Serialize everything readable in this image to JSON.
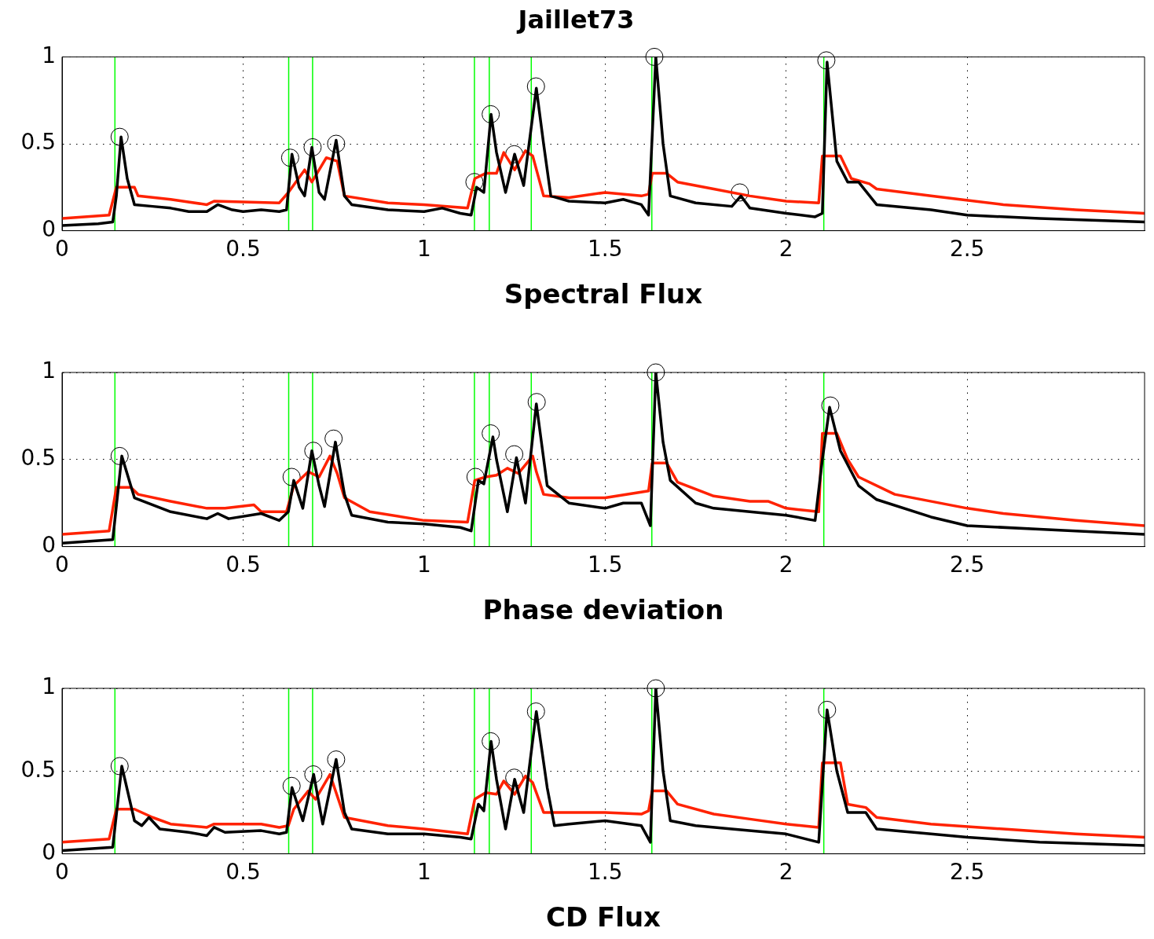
{
  "chart_data": [
    {
      "type": "line",
      "title": "Jaillet73",
      "xlabel": "Spectral Flux",
      "xlim": [
        0,
        2.99
      ],
      "xticks": [
        0,
        0.5,
        1,
        1.5,
        2,
        2.5
      ],
      "ylim": [
        0,
        1
      ],
      "yticks": [
        0,
        0.5,
        1
      ],
      "grid": true,
      "legend": false,
      "ref_lines": [
        {
          "axis": "x",
          "value": 0.146,
          "color": "#00ff00"
        },
        {
          "axis": "x",
          "value": 0.626,
          "color": "#00ff00"
        },
        {
          "axis": "x",
          "value": 0.692,
          "color": "#00ff00"
        },
        {
          "axis": "x",
          "value": 1.139,
          "color": "#00ff00"
        },
        {
          "axis": "x",
          "value": 1.18,
          "color": "#00ff00"
        },
        {
          "axis": "x",
          "value": 1.296,
          "color": "#00ff00"
        },
        {
          "axis": "x",
          "value": 1.629,
          "color": "#00ff00"
        },
        {
          "axis": "x",
          "value": 2.104,
          "color": "#00ff00"
        }
      ],
      "series": [
        {
          "type": "line",
          "color": "#000000",
          "x": [
            0,
            0.1,
            0.14,
            0.15,
            0.163,
            0.18,
            0.2,
            0.25,
            0.3,
            0.35,
            0.4,
            0.43,
            0.47,
            0.5,
            0.55,
            0.6,
            0.62,
            0.635,
            0.655,
            0.67,
            0.69,
            0.71,
            0.725,
            0.757,
            0.78,
            0.8,
            0.9,
            1,
            1.05,
            1.1,
            1.13,
            1.145,
            1.165,
            1.185,
            1.2,
            1.225,
            1.25,
            1.275,
            1.31,
            1.33,
            1.35,
            1.4,
            1.5,
            1.55,
            1.6,
            1.62,
            1.64,
            1.66,
            1.68,
            1.75,
            1.85,
            1.875,
            1.9,
            2,
            2.08,
            2.1,
            2.113,
            2.14,
            2.17,
            2.2,
            2.25,
            2.4,
            2.5,
            2.7,
            2.99
          ],
          "values": [
            0.03,
            0.04,
            0.05,
            0.2,
            0.54,
            0.3,
            0.15,
            0.14,
            0.13,
            0.11,
            0.11,
            0.15,
            0.12,
            0.11,
            0.12,
            0.11,
            0.12,
            0.44,
            0.25,
            0.2,
            0.48,
            0.22,
            0.18,
            0.52,
            0.2,
            0.15,
            0.12,
            0.11,
            0.13,
            0.1,
            0.09,
            0.25,
            0.22,
            0.67,
            0.45,
            0.22,
            0.44,
            0.26,
            0.82,
            0.5,
            0.2,
            0.17,
            0.16,
            0.18,
            0.15,
            0.09,
            1,
            0.5,
            0.2,
            0.16,
            0.14,
            0.2,
            0.13,
            0.1,
            0.08,
            0.1,
            0.97,
            0.4,
            0.28,
            0.28,
            0.15,
            0.12,
            0.09,
            0.07,
            0.05
          ]
        },
        {
          "type": "line",
          "color": "#ff2200",
          "x": [
            0,
            0.13,
            0.15,
            0.2,
            0.21,
            0.3,
            0.4,
            0.42,
            0.6,
            0.625,
            0.67,
            0.69,
            0.73,
            0.76,
            0.78,
            0.9,
            1,
            1.12,
            1.14,
            1.17,
            1.2,
            1.22,
            1.25,
            1.28,
            1.3,
            1.33,
            1.4,
            1.5,
            1.6,
            1.62,
            1.63,
            1.67,
            1.7,
            1.8,
            1.9,
            2,
            2.09,
            2.1,
            2.15,
            2.18,
            2.23,
            2.25,
            2.4,
            2.6,
            2.8,
            2.99
          ],
          "values": [
            0.07,
            0.09,
            0.25,
            0.25,
            0.2,
            0.18,
            0.15,
            0.17,
            0.16,
            0.22,
            0.35,
            0.28,
            0.42,
            0.4,
            0.2,
            0.16,
            0.15,
            0.13,
            0.3,
            0.33,
            0.33,
            0.45,
            0.35,
            0.46,
            0.43,
            0.2,
            0.19,
            0.22,
            0.2,
            0.21,
            0.33,
            0.33,
            0.28,
            0.24,
            0.2,
            0.17,
            0.16,
            0.43,
            0.43,
            0.3,
            0.27,
            0.24,
            0.2,
            0.15,
            0.12,
            0.1
          ]
        },
        {
          "type": "scatter",
          "color": "#000000",
          "marker": "circle",
          "x": [
            0.159,
            0.63,
            0.692,
            0.757,
            1.139,
            1.184,
            1.249,
            1.309,
            1.636,
            1.872,
            2.111
          ],
          "values": [
            0.54,
            0.42,
            0.48,
            0.5,
            0.28,
            0.67,
            0.44,
            0.83,
            1,
            0.22,
            0.98
          ]
        }
      ]
    },
    {
      "type": "line",
      "xlabel": "Phase deviation",
      "xlim": [
        0,
        2.99
      ],
      "xticks": [
        0,
        0.5,
        1,
        1.5,
        2,
        2.5
      ],
      "ylim": [
        0,
        1
      ],
      "yticks": [
        0,
        0.5,
        1
      ],
      "grid": true,
      "legend": false,
      "ref_lines": [
        {
          "axis": "x",
          "value": 0.146,
          "color": "#00ff00"
        },
        {
          "axis": "x",
          "value": 0.626,
          "color": "#00ff00"
        },
        {
          "axis": "x",
          "value": 0.692,
          "color": "#00ff00"
        },
        {
          "axis": "x",
          "value": 1.139,
          "color": "#00ff00"
        },
        {
          "axis": "x",
          "value": 1.18,
          "color": "#00ff00"
        },
        {
          "axis": "x",
          "value": 1.296,
          "color": "#00ff00"
        },
        {
          "axis": "x",
          "value": 1.629,
          "color": "#00ff00"
        },
        {
          "axis": "x",
          "value": 2.104,
          "color": "#00ff00"
        }
      ],
      "series": [
        {
          "type": "line",
          "color": "#000000",
          "x": [
            0,
            0.14,
            0.165,
            0.2,
            0.3,
            0.4,
            0.43,
            0.46,
            0.55,
            0.6,
            0.625,
            0.64,
            0.665,
            0.69,
            0.71,
            0.725,
            0.755,
            0.78,
            0.8,
            0.9,
            1,
            1.1,
            1.13,
            1.15,
            1.165,
            1.19,
            1.2,
            1.23,
            1.255,
            1.28,
            1.31,
            1.34,
            1.4,
            1.5,
            1.55,
            1.6,
            1.625,
            1.64,
            1.66,
            1.68,
            1.75,
            1.8,
            1.9,
            2,
            2.08,
            2.1,
            2.12,
            2.15,
            2.2,
            2.25,
            2.4,
            2.5,
            2.7,
            2.99
          ],
          "values": [
            0.02,
            0.04,
            0.52,
            0.28,
            0.2,
            0.16,
            0.19,
            0.16,
            0.19,
            0.15,
            0.2,
            0.38,
            0.22,
            0.55,
            0.35,
            0.23,
            0.6,
            0.3,
            0.18,
            0.14,
            0.13,
            0.11,
            0.09,
            0.38,
            0.36,
            0.63,
            0.5,
            0.2,
            0.51,
            0.25,
            0.82,
            0.35,
            0.25,
            0.22,
            0.25,
            0.25,
            0.12,
            1,
            0.6,
            0.38,
            0.25,
            0.22,
            0.2,
            0.18,
            0.15,
            0.5,
            0.8,
            0.55,
            0.35,
            0.27,
            0.17,
            0.12,
            0.1,
            0.07
          ]
        },
        {
          "type": "line",
          "color": "#ff2200",
          "x": [
            0,
            0.13,
            0.15,
            0.19,
            0.21,
            0.3,
            0.4,
            0.45,
            0.53,
            0.55,
            0.62,
            0.64,
            0.68,
            0.71,
            0.74,
            0.76,
            0.78,
            0.85,
            1,
            1.12,
            1.14,
            1.17,
            1.2,
            1.23,
            1.26,
            1.3,
            1.31,
            1.33,
            1.4,
            1.5,
            1.62,
            1.63,
            1.67,
            1.7,
            1.8,
            1.9,
            1.95,
            2,
            2.09,
            2.1,
            2.14,
            2.17,
            2.2,
            2.3,
            2.5,
            2.6,
            2.8,
            2.99
          ],
          "values": [
            0.07,
            0.09,
            0.34,
            0.34,
            0.3,
            0.26,
            0.22,
            0.22,
            0.24,
            0.2,
            0.2,
            0.35,
            0.43,
            0.4,
            0.52,
            0.42,
            0.28,
            0.2,
            0.15,
            0.14,
            0.38,
            0.4,
            0.41,
            0.45,
            0.42,
            0.52,
            0.43,
            0.3,
            0.28,
            0.28,
            0.32,
            0.48,
            0.48,
            0.37,
            0.29,
            0.26,
            0.26,
            0.22,
            0.2,
            0.65,
            0.65,
            0.5,
            0.4,
            0.3,
            0.22,
            0.19,
            0.15,
            0.12
          ]
        },
        {
          "type": "scatter",
          "color": "#000000",
          "marker": "circle",
          "x": [
            0.159,
            0.634,
            0.694,
            0.75,
            1.142,
            1.184,
            1.249,
            1.311,
            1.64,
            2.122
          ],
          "values": [
            0.52,
            0.4,
            0.55,
            0.62,
            0.4,
            0.65,
            0.53,
            0.83,
            1,
            0.81
          ]
        }
      ]
    },
    {
      "type": "line",
      "xlabel": "CD Flux",
      "xlim": [
        0,
        2.99
      ],
      "xticks": [
        0,
        0.5,
        1,
        1.5,
        2,
        2.5
      ],
      "ylim": [
        0,
        1
      ],
      "yticks": [
        0,
        0.5,
        1
      ],
      "grid": true,
      "legend": false,
      "ref_lines": [
        {
          "axis": "x",
          "value": 0.146,
          "color": "#00ff00"
        },
        {
          "axis": "x",
          "value": 0.626,
          "color": "#00ff00"
        },
        {
          "axis": "x",
          "value": 0.692,
          "color": "#00ff00"
        },
        {
          "axis": "x",
          "value": 1.139,
          "color": "#00ff00"
        },
        {
          "axis": "x",
          "value": 1.18,
          "color": "#00ff00"
        },
        {
          "axis": "x",
          "value": 1.296,
          "color": "#00ff00"
        },
        {
          "axis": "x",
          "value": 1.629,
          "color": "#00ff00"
        },
        {
          "axis": "x",
          "value": 2.104,
          "color": "#00ff00"
        }
      ],
      "series": [
        {
          "type": "line",
          "color": "#000000",
          "x": [
            0,
            0.14,
            0.165,
            0.2,
            0.22,
            0.24,
            0.27,
            0.35,
            0.4,
            0.42,
            0.45,
            0.55,
            0.6,
            0.62,
            0.635,
            0.665,
            0.695,
            0.72,
            0.757,
            0.78,
            0.8,
            0.9,
            1,
            1.1,
            1.13,
            1.15,
            1.165,
            1.185,
            1.2,
            1.225,
            1.25,
            1.275,
            1.31,
            1.34,
            1.36,
            1.4,
            1.5,
            1.6,
            1.625,
            1.64,
            1.66,
            1.68,
            1.75,
            1.85,
            2,
            2.09,
            2.113,
            2.14,
            2.17,
            2.22,
            2.25,
            2.4,
            2.5,
            2.7,
            2.99
          ],
          "values": [
            0.02,
            0.04,
            0.53,
            0.2,
            0.17,
            0.22,
            0.15,
            0.13,
            0.11,
            0.16,
            0.13,
            0.14,
            0.12,
            0.13,
            0.4,
            0.2,
            0.48,
            0.18,
            0.57,
            0.25,
            0.15,
            0.12,
            0.12,
            0.1,
            0.09,
            0.3,
            0.26,
            0.68,
            0.45,
            0.15,
            0.45,
            0.25,
            0.86,
            0.4,
            0.17,
            0.18,
            0.2,
            0.17,
            0.07,
            1,
            0.5,
            0.2,
            0.17,
            0.15,
            0.12,
            0.07,
            0.87,
            0.5,
            0.25,
            0.25,
            0.15,
            0.12,
            0.1,
            0.07,
            0.05
          ]
        },
        {
          "type": "line",
          "color": "#ff2200",
          "x": [
            0,
            0.13,
            0.15,
            0.2,
            0.25,
            0.3,
            0.4,
            0.42,
            0.55,
            0.6,
            0.625,
            0.64,
            0.68,
            0.7,
            0.74,
            0.76,
            0.78,
            0.9,
            1,
            1.12,
            1.14,
            1.17,
            1.2,
            1.22,
            1.25,
            1.28,
            1.3,
            1.33,
            1.5,
            1.6,
            1.62,
            1.63,
            1.67,
            1.7,
            1.8,
            1.9,
            2,
            2.09,
            2.1,
            2.15,
            2.17,
            2.22,
            2.25,
            2.4,
            2.6,
            2.8,
            2.99
          ],
          "values": [
            0.07,
            0.09,
            0.27,
            0.27,
            0.22,
            0.18,
            0.16,
            0.18,
            0.18,
            0.16,
            0.17,
            0.27,
            0.38,
            0.33,
            0.48,
            0.35,
            0.22,
            0.17,
            0.15,
            0.12,
            0.33,
            0.37,
            0.36,
            0.44,
            0.36,
            0.47,
            0.43,
            0.25,
            0.25,
            0.24,
            0.26,
            0.38,
            0.38,
            0.3,
            0.24,
            0.21,
            0.18,
            0.16,
            0.55,
            0.55,
            0.3,
            0.28,
            0.22,
            0.18,
            0.15,
            0.12,
            0.1
          ]
        },
        {
          "type": "scatter",
          "color": "#000000",
          "marker": "circle",
          "x": [
            0.159,
            0.634,
            0.694,
            0.757,
            1.184,
            1.249,
            1.309,
            1.64,
            2.113
          ],
          "values": [
            0.53,
            0.41,
            0.48,
            0.57,
            0.68,
            0.46,
            0.86,
            1,
            0.87
          ]
        }
      ]
    }
  ]
}
